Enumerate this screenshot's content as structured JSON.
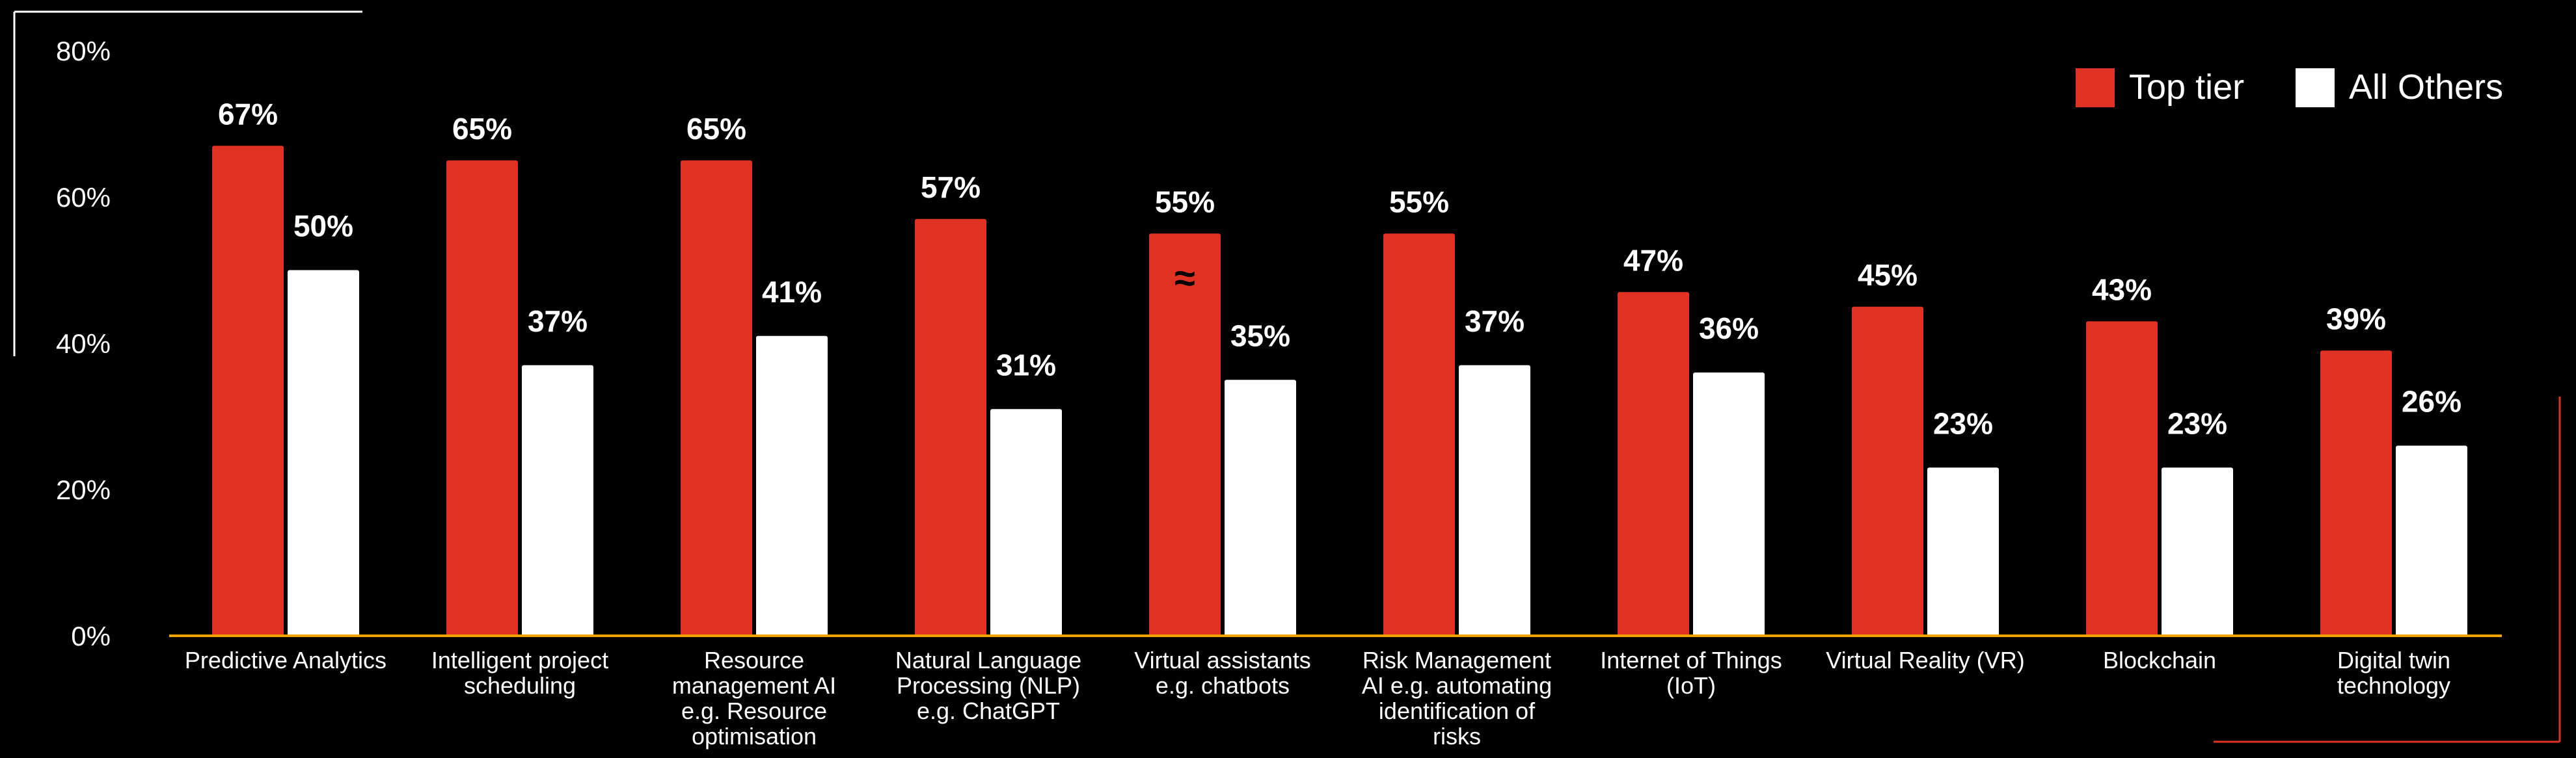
{
  "chart_data": {
    "type": "bar",
    "ylim": [
      0,
      80
    ],
    "yticks": [
      "0%",
      "20%",
      "40%",
      "60%",
      "80%"
    ],
    "grid": false,
    "legend_position": "top-right",
    "categories": [
      [
        "Predictive Analytics"
      ],
      [
        "Intelligent project",
        "scheduling"
      ],
      [
        "Resource",
        "management AI",
        "e.g. Resource",
        "optimisation"
      ],
      [
        "Natural Language",
        "Processing (NLP)",
        "e.g. ChatGPT"
      ],
      [
        "Virtual assistants",
        "e.g. chatbots"
      ],
      [
        "Risk Management",
        "AI e.g. automating",
        "identification of",
        "risks"
      ],
      [
        "Internet of Things",
        "(IoT)"
      ],
      [
        "Virtual Reality (VR)"
      ],
      [
        "Blockchain"
      ],
      [
        "Digital twin",
        "technology"
      ]
    ],
    "series": [
      {
        "name": "Top tier",
        "color": "#e03222",
        "values": [
          67,
          65,
          65,
          57,
          55,
          55,
          47,
          45,
          43,
          39
        ],
        "labels": [
          "67%",
          "65%",
          "65%",
          "57%",
          "55%",
          "55%",
          "47%",
          "45%",
          "43%",
          "39%"
        ]
      },
      {
        "name": "All Others",
        "color": "#ffffff",
        "values": [
          50,
          37,
          41,
          31,
          35,
          37,
          36,
          23,
          23,
          26
        ],
        "labels": [
          "50%",
          "37%",
          "41%",
          "31%",
          "35%",
          "37%",
          "36%",
          "23%",
          "23%",
          "26%"
        ]
      }
    ],
    "annotations": [
      {
        "category_index": 4,
        "series": "Top tier",
        "text": "≈"
      }
    ],
    "axis_color": "#f0a500",
    "frame_accent_color": "#e03222"
  }
}
